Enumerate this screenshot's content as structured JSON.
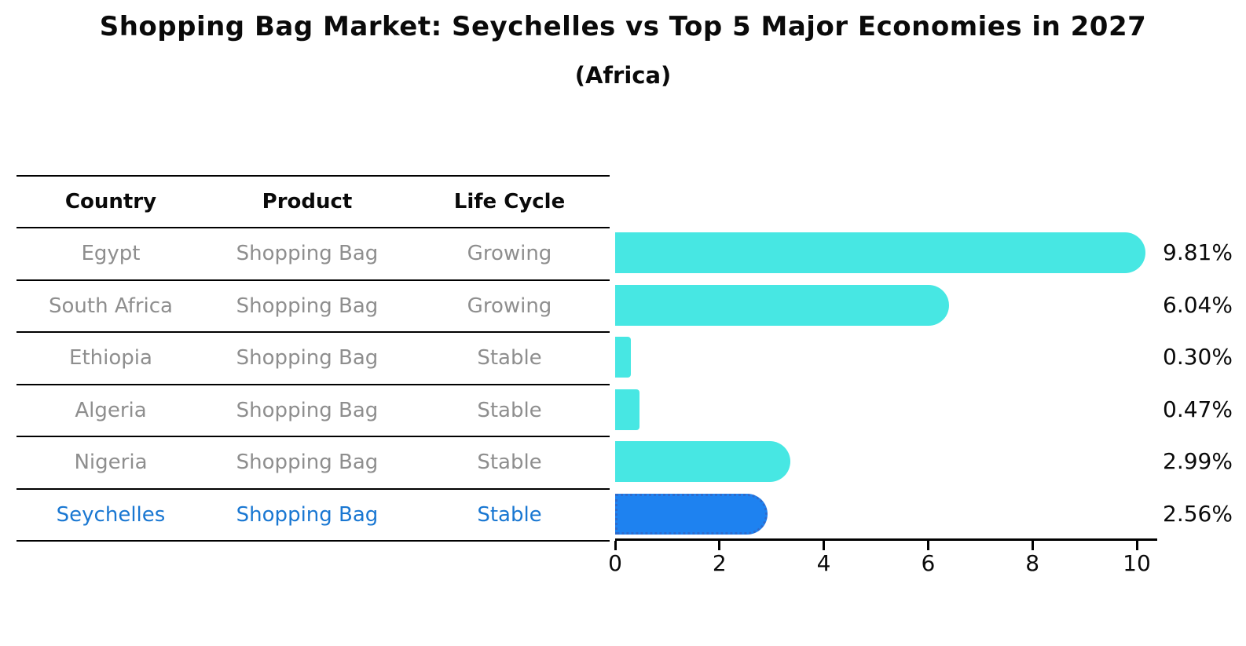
{
  "title": "Shopping Bag Market: Seychelles vs Top 5 Major Economies in 2027",
  "subtitle": "(Africa)",
  "table": {
    "headers": [
      "Country",
      "Product",
      "Life Cycle"
    ],
    "rows": [
      {
        "country": "Egypt",
        "product": "Shopping Bag",
        "life_cycle": "Growing",
        "highlight": false
      },
      {
        "country": "South Africa",
        "product": "Shopping Bag",
        "life_cycle": "Growing",
        "highlight": false
      },
      {
        "country": "Ethiopia",
        "product": "Shopping Bag",
        "life_cycle": "Stable",
        "highlight": false
      },
      {
        "country": "Algeria",
        "product": "Shopping Bag",
        "life_cycle": "Stable",
        "highlight": false
      },
      {
        "country": "Nigeria",
        "product": "Shopping Bag",
        "life_cycle": "Stable",
        "highlight": false
      },
      {
        "country": "Seychelles",
        "product": "Shopping Bag",
        "life_cycle": "Stable",
        "highlight": true
      }
    ]
  },
  "chart_data": {
    "type": "bar",
    "orientation": "horizontal",
    "title": "Shopping Bag Market: Seychelles vs Top 5 Major Economies in 2027",
    "subtitle": "(Africa)",
    "categories": [
      "Egypt",
      "South Africa",
      "Ethiopia",
      "Algeria",
      "Nigeria",
      "Seychelles"
    ],
    "values": [
      9.81,
      6.04,
      0.3,
      0.47,
      2.99,
      2.56
    ],
    "value_labels": [
      "9.81%",
      "6.04%",
      "0.30%",
      "0.47%",
      "2.99%",
      "2.56%"
    ],
    "x_ticks": [
      "0",
      "2",
      "4",
      "6",
      "8",
      "10"
    ],
    "xlim": [
      0,
      10
    ],
    "grid": false,
    "legend": false,
    "bar_color": "#47e7e3",
    "highlight_index": 5,
    "highlight_bar_color": "#1e82f0",
    "highlight_border_color": "#2e6bcc"
  },
  "colors": {
    "background": "#ffffff",
    "text": "#0a0a0a",
    "text_muted": "#8e8e8e",
    "highlight_text": "#1977d2",
    "axis": "#000000"
  }
}
